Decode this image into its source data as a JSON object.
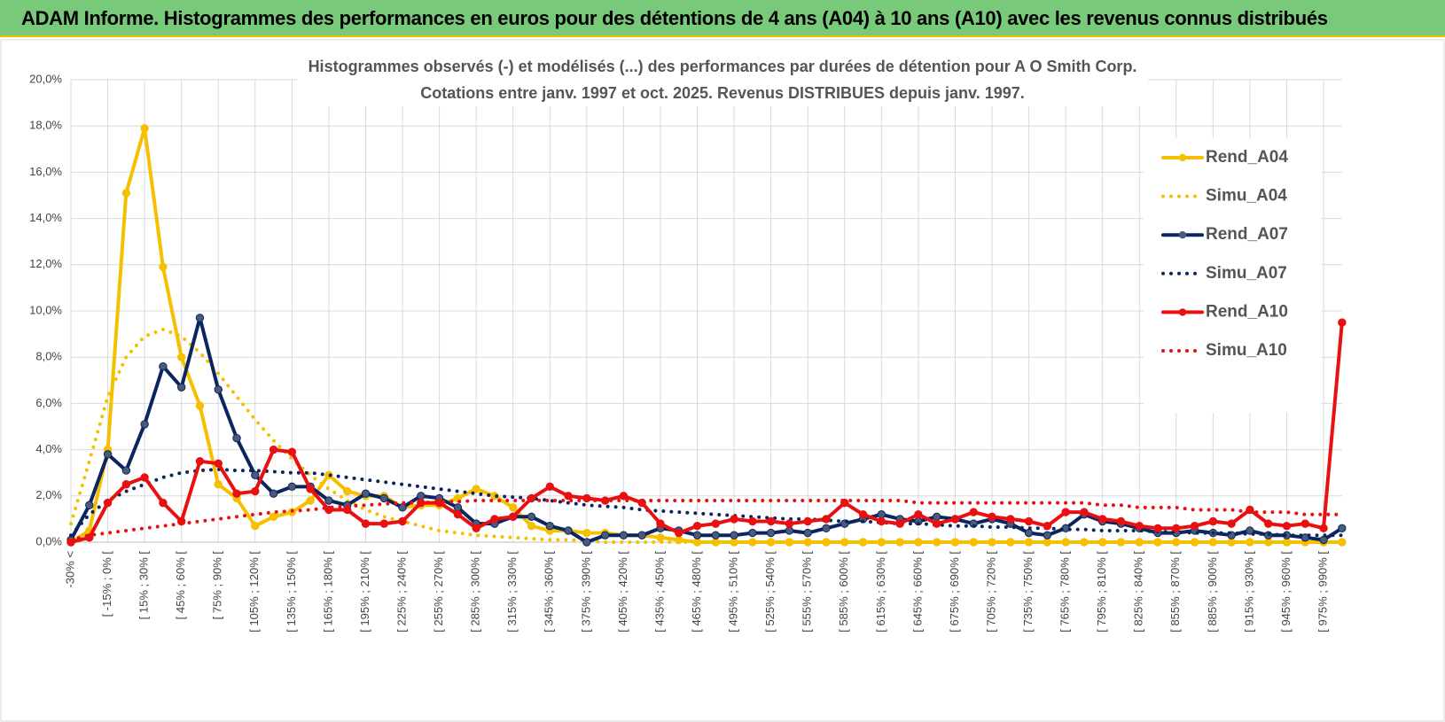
{
  "header": {
    "title": "ADAM Informe. Histogrammes des performances en euros pour des détentions de 4 ans (A04) à 10 ans (A10) avec les revenus connus distribués"
  },
  "chart_data": {
    "type": "line",
    "title": "Histogrammes observés (-) et modélisés (...) des performances par durées de détention pour A O Smith Corp.",
    "subtitle": "Cotations entre janv. 1997 et oct. 2025.  Revenus DISTRIBUES depuis janv. 1997.",
    "categories": [
      "-30% <",
      null,
      "[ -15% ; 0% [",
      null,
      "[ 15% ; 30% [",
      null,
      "[ 45% ; 60% [",
      null,
      "[ 75% ; 90% [",
      null,
      "[ 105% ; 120% [",
      null,
      "[ 135% ; 150% [",
      null,
      "[ 165% ; 180% [",
      null,
      "[ 195% ; 210% [",
      null,
      "[ 225% ; 240% [",
      null,
      "[ 255% ; 270% [",
      null,
      "[ 285% ; 300% [",
      null,
      "[ 315% ; 330% [",
      null,
      "[ 345% ; 360% [",
      null,
      "[ 375% ; 390% [",
      null,
      "[ 405% ; 420% [",
      null,
      "[ 435% ; 450% [",
      null,
      "[ 465% ; 480% [",
      null,
      "[ 495% ; 510% [",
      null,
      "[ 525% ; 540% [",
      null,
      "[ 555% ; 570% [",
      null,
      "[ 585% ; 600% [",
      null,
      "[ 615% ; 630% [",
      null,
      "[ 645% ; 660% [",
      null,
      "[ 675% ; 690% [",
      null,
      "[ 705% ; 720% [",
      null,
      "[ 735% ; 750% [",
      null,
      "[ 765% ; 780% [",
      null,
      "[ 795% ; 810% [",
      null,
      "[ 825% ; 840% [",
      null,
      "[ 855% ; 870% [",
      null,
      "[ 885% ; 900% [",
      null,
      "[ 915% ; 930% [",
      null,
      "[ 945% ; 960% [",
      null,
      "[ 975% ; 990% [",
      null
    ],
    "ylim": [
      0,
      20
    ],
    "yticks": [
      {
        "value": 0,
        "label": "0,0%"
      },
      {
        "value": 2,
        "label": "2,0%"
      },
      {
        "value": 4,
        "label": "4,0%"
      },
      {
        "value": 6,
        "label": "6,0%"
      },
      {
        "value": 8,
        "label": "8,0%"
      },
      {
        "value": 10,
        "label": "10,0%"
      },
      {
        "value": 12,
        "label": "12,0%"
      },
      {
        "value": 14,
        "label": "14,0%"
      },
      {
        "value": 16,
        "label": "16,0%"
      },
      {
        "value": 18,
        "label": "18,0%"
      },
      {
        "value": 20,
        "label": "20,0%"
      }
    ],
    "grid": true,
    "legend": "right",
    "series": [
      {
        "name": "Rend_A04",
        "color": "#f5c000",
        "line_style": "solid",
        "marker": true,
        "values": [
          0.0,
          0.5,
          4.0,
          15.1,
          17.9,
          11.9,
          8.0,
          5.9,
          2.5,
          1.9,
          0.7,
          1.1,
          1.3,
          1.8,
          2.9,
          2.2,
          2.0,
          2.0,
          1.5,
          1.6,
          1.6,
          1.9,
          2.3,
          2.0,
          1.5,
          0.7,
          0.5,
          0.5,
          0.4,
          0.4,
          0.3,
          0.3,
          0.2,
          0.1,
          0.0,
          0.0,
          0.0,
          0.0,
          0.0,
          0.0,
          0.0,
          0.0,
          0.0,
          0.0,
          0.0,
          0.0,
          0.0,
          0.0,
          0.0,
          0.0,
          0.0,
          0.0,
          0.0,
          0.0,
          0.0,
          0.0,
          0.0,
          0.0,
          0.0,
          0.0,
          0.0,
          0.0,
          0.0,
          0.0,
          0.0,
          0.0,
          0.0,
          0.0,
          0.0,
          0.0
        ]
      },
      {
        "name": "Simu_A04",
        "color": "#f5c000",
        "line_style": "dotted",
        "marker": false,
        "values": [
          0.8,
          3.5,
          6.3,
          8.0,
          8.9,
          9.2,
          8.9,
          8.2,
          7.3,
          6.3,
          5.3,
          4.4,
          3.6,
          2.9,
          2.3,
          1.8,
          1.4,
          1.1,
          0.9,
          0.7,
          0.5,
          0.4,
          0.3,
          0.25,
          0.2,
          0.15,
          0.1,
          0.1,
          0.05,
          0.0,
          0.0,
          0.0,
          0.0,
          0.0,
          0.0,
          0.0,
          0.0,
          0.0,
          0.0,
          0.0,
          0.0,
          0.0,
          0.0,
          0.0,
          0.0,
          0.0,
          0.0,
          0.0,
          0.0,
          0.0,
          0.0,
          0.0,
          0.0,
          0.0,
          0.0,
          0.0,
          0.0,
          0.0,
          0.0,
          0.0,
          0.0,
          0.0,
          0.0,
          0.0,
          0.0,
          0.0,
          0.0,
          0.0,
          0.0,
          0.0
        ]
      },
      {
        "name": "Rend_A07",
        "color": "#0b2560",
        "line_style": "solid",
        "marker": true,
        "values": [
          0.1,
          1.6,
          3.8,
          3.1,
          5.1,
          7.6,
          6.7,
          9.7,
          6.6,
          4.5,
          2.9,
          2.1,
          2.4,
          2.4,
          1.8,
          1.6,
          2.1,
          1.9,
          1.5,
          2.0,
          1.9,
          1.5,
          0.8,
          0.8,
          1.1,
          1.1,
          0.7,
          0.5,
          0.0,
          0.3,
          0.3,
          0.3,
          0.6,
          0.5,
          0.3,
          0.3,
          0.3,
          0.4,
          0.4,
          0.5,
          0.4,
          0.6,
          0.8,
          1.0,
          1.2,
          1.0,
          0.9,
          1.1,
          1.0,
          0.8,
          1.0,
          0.8,
          0.4,
          0.3,
          0.6,
          1.2,
          0.9,
          0.8,
          0.6,
          0.4,
          0.4,
          0.5,
          0.4,
          0.3,
          0.5,
          0.3,
          0.3,
          0.2,
          0.1,
          0.6
        ]
      },
      {
        "name": "Simu_A07",
        "color": "#0b2560",
        "line_style": "dotted",
        "marker": false,
        "values": [
          0.3,
          1.2,
          1.8,
          2.2,
          2.5,
          2.8,
          3.0,
          3.1,
          3.15,
          3.1,
          3.1,
          3.05,
          3.0,
          3.0,
          2.9,
          2.8,
          2.7,
          2.6,
          2.5,
          2.4,
          2.3,
          2.2,
          2.1,
          2.0,
          1.95,
          1.9,
          1.8,
          1.7,
          1.6,
          1.55,
          1.5,
          1.4,
          1.35,
          1.3,
          1.25,
          1.2,
          1.15,
          1.1,
          1.05,
          1.0,
          1.0,
          0.95,
          0.9,
          0.9,
          0.85,
          0.8,
          0.8,
          0.75,
          0.7,
          0.7,
          0.65,
          0.65,
          0.6,
          0.6,
          0.55,
          0.55,
          0.5,
          0.5,
          0.5,
          0.45,
          0.45,
          0.4,
          0.4,
          0.4,
          0.35,
          0.35,
          0.3,
          0.3,
          0.3,
          0.3
        ]
      },
      {
        "name": "Rend_A10",
        "color": "#e81010",
        "line_style": "solid",
        "marker": true,
        "values": [
          0.0,
          0.2,
          1.7,
          2.5,
          2.8,
          1.7,
          0.9,
          3.5,
          3.4,
          2.1,
          2.2,
          4.0,
          3.9,
          2.3,
          1.4,
          1.4,
          0.8,
          0.8,
          0.9,
          1.7,
          1.7,
          1.2,
          0.6,
          1.0,
          1.1,
          1.9,
          2.4,
          2.0,
          1.9,
          1.8,
          2.0,
          1.7,
          0.8,
          0.4,
          0.7,
          0.8,
          1.0,
          0.9,
          0.9,
          0.8,
          0.9,
          1.0,
          1.7,
          1.2,
          0.9,
          0.8,
          1.2,
          0.8,
          1.0,
          1.3,
          1.1,
          1.0,
          0.9,
          0.7,
          1.3,
          1.3,
          1.0,
          0.9,
          0.7,
          0.6,
          0.6,
          0.7,
          0.9,
          0.8,
          1.4,
          0.8,
          0.7,
          0.8,
          0.6,
          9.5
        ]
      },
      {
        "name": "Simu_A10",
        "color": "#e81010",
        "line_style": "dotted",
        "marker": false,
        "values": [
          0.1,
          0.3,
          0.4,
          0.5,
          0.6,
          0.7,
          0.8,
          0.9,
          1.0,
          1.1,
          1.2,
          1.3,
          1.35,
          1.4,
          1.5,
          1.55,
          1.6,
          1.65,
          1.7,
          1.7,
          1.75,
          1.75,
          1.8,
          1.8,
          1.8,
          1.8,
          1.8,
          1.8,
          1.8,
          1.8,
          1.8,
          1.8,
          1.8,
          1.8,
          1.8,
          1.8,
          1.8,
          1.8,
          1.8,
          1.8,
          1.8,
          1.8,
          1.8,
          1.8,
          1.8,
          1.8,
          1.7,
          1.7,
          1.7,
          1.7,
          1.7,
          1.7,
          1.7,
          1.7,
          1.7,
          1.7,
          1.6,
          1.6,
          1.5,
          1.5,
          1.5,
          1.4,
          1.4,
          1.4,
          1.3,
          1.3,
          1.3,
          1.2,
          1.2,
          1.2
        ]
      }
    ]
  }
}
